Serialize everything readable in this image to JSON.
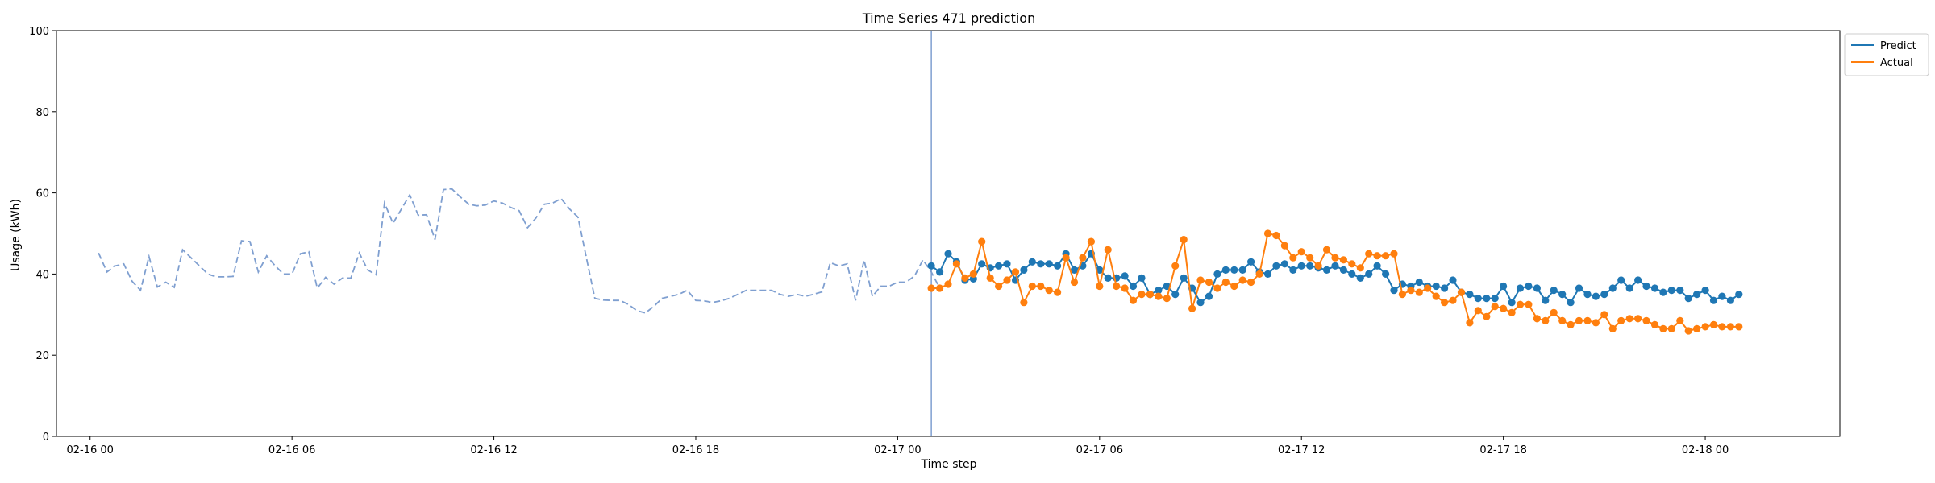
{
  "chart_data": {
    "type": "line",
    "title": "Time Series 471 prediction",
    "xlabel": "Time step",
    "ylabel": "Usage (kWh)",
    "ylim": [
      0,
      100
    ],
    "yticks": [
      "0",
      "20",
      "40",
      "60",
      "80",
      "100"
    ],
    "xlim": [
      "2016-02-15 23:00",
      "2016-02-18 04:00"
    ],
    "xticks": [
      {
        "t": "2016-02-16 00:00",
        "label": "02-16 00"
      },
      {
        "t": "2016-02-16 06:00",
        "label": "02-16 06"
      },
      {
        "t": "2016-02-16 12:00",
        "label": "02-16 12"
      },
      {
        "t": "2016-02-16 18:00",
        "label": "02-16 18"
      },
      {
        "t": "2016-02-17 00:00",
        "label": "02-17 00"
      },
      {
        "t": "2016-02-17 06:00",
        "label": "02-17 06"
      },
      {
        "t": "2016-02-17 12:00",
        "label": "02-17 12"
      },
      {
        "t": "2016-02-17 18:00",
        "label": "02-17 18"
      },
      {
        "t": "2016-02-18 00:00",
        "label": "02-18 00"
      }
    ],
    "legend_position": "upper right, outside plot",
    "forecast_start": "2016-02-17 01:00",
    "series": [
      {
        "name": "",
        "role": "history",
        "style": "dashed",
        "color": "#7f9fd0",
        "start": "2016-02-16 00:15",
        "step_minutes": 15,
        "values": [
          45.2,
          40.5,
          42.0,
          42.5,
          38.2,
          36.0,
          44.3,
          36.8,
          38.0,
          36.7,
          46.0,
          44.0,
          42.0,
          40.0,
          39.3,
          39.3,
          39.4,
          48.2,
          48.0,
          40.5,
          44.5,
          42.0,
          40.0,
          40.0,
          45.0,
          45.5,
          36.5,
          39.2,
          37.5,
          39.0,
          39.0,
          45.2,
          41.0,
          39.8,
          57.5,
          52.5,
          56.0,
          59.5,
          54.5,
          54.6,
          48.5,
          60.8,
          61.0,
          59.0,
          57.2,
          56.8,
          57.0,
          58.0,
          57.5,
          56.4,
          55.6,
          51.4,
          53.8,
          57.2,
          57.5,
          58.6,
          56.0,
          54.0,
          44.0,
          34.0,
          33.6,
          33.5,
          33.5,
          32.5,
          31.0,
          30.4,
          32.0,
          34.0,
          34.5,
          35.0,
          36.0,
          33.5,
          33.4,
          33.0,
          33.4,
          34.0,
          35.0,
          36.0,
          36.0,
          36.0,
          36.0,
          35.0,
          34.5,
          35.0,
          34.5,
          35.0,
          35.6,
          42.8,
          42.0,
          42.5,
          33.5,
          43.5,
          34.5,
          37.0,
          37.0,
          38.0,
          38.0,
          39.5,
          43.5,
          40.5,
          36.5
        ]
      },
      {
        "name": "Predict",
        "role": "forecast",
        "color": "#1f77b4",
        "start": "2016-02-17 01:00",
        "step_minutes": 15,
        "values": [
          42.0,
          40.5,
          45.0,
          43.0,
          38.5,
          38.8,
          42.5,
          41.5,
          42.0,
          42.5,
          38.5,
          41.0,
          43.0,
          42.5,
          42.5,
          42.0,
          45.0,
          41.0,
          42.0,
          45.0,
          41.0,
          39.0,
          39.0,
          39.5,
          37.0,
          39.0,
          35.0,
          36.0,
          37.0,
          35.0,
          39.0,
          36.5,
          33.0,
          34.5,
          40.0,
          41.0,
          41.0,
          41.0,
          43.0,
          40.5,
          40.0,
          42.0,
          42.5,
          41.0,
          42.0,
          42.0,
          41.5,
          41.0,
          42.0,
          41.0,
          40.0,
          39.0,
          40.0,
          42.0,
          40.0,
          36.0,
          37.5,
          37.0,
          38.0,
          37.0,
          37.0,
          36.5,
          38.5,
          35.5,
          35.0,
          34.0,
          34.0,
          34.0,
          37.0,
          33.0,
          36.5,
          37.0,
          36.5,
          33.5,
          36.0,
          35.0,
          33.0,
          36.5,
          35.0,
          34.5,
          35.0,
          36.5,
          38.5,
          36.5,
          38.5,
          37.0,
          36.5,
          35.5,
          36.0,
          36.0,
          34.0,
          35.0,
          36.0,
          33.5,
          34.5,
          33.5,
          35.0
        ]
      },
      {
        "name": "Actual",
        "role": "actual",
        "color": "#ff7f0e",
        "start": "2016-02-17 01:00",
        "step_minutes": 15,
        "values": [
          36.5,
          36.5,
          37.5,
          42.5,
          39.0,
          40.0,
          48.0,
          39.0,
          37.0,
          38.5,
          40.5,
          33.0,
          37.0,
          37.0,
          36.0,
          35.5,
          44.0,
          38.0,
          44.0,
          48.0,
          37.0,
          46.0,
          37.0,
          36.5,
          33.5,
          35.0,
          35.0,
          34.5,
          34.0,
          42.0,
          48.5,
          31.5,
          38.5,
          38.0,
          36.5,
          38.0,
          37.0,
          38.5,
          38.0,
          40.0,
          50.0,
          49.5,
          47.0,
          44.0,
          45.5,
          44.0,
          42.0,
          46.0,
          44.0,
          43.5,
          42.5,
          41.5,
          45.0,
          44.5,
          44.5,
          45.0,
          35.0,
          36.0,
          35.5,
          36.5,
          34.5,
          33.0,
          33.5,
          35.5,
          28.0,
          31.0,
          29.5,
          32.0,
          31.5,
          30.5,
          32.5,
          32.5,
          29.0,
          28.5,
          30.5,
          28.5,
          27.5,
          28.5,
          28.5,
          28.0,
          30.0,
          26.5,
          28.5,
          29.0,
          29.0,
          28.5,
          27.5,
          26.5,
          26.5,
          28.5,
          26.0,
          26.5,
          27.0,
          27.5,
          27.0,
          27.0,
          27.0
        ]
      }
    ]
  }
}
